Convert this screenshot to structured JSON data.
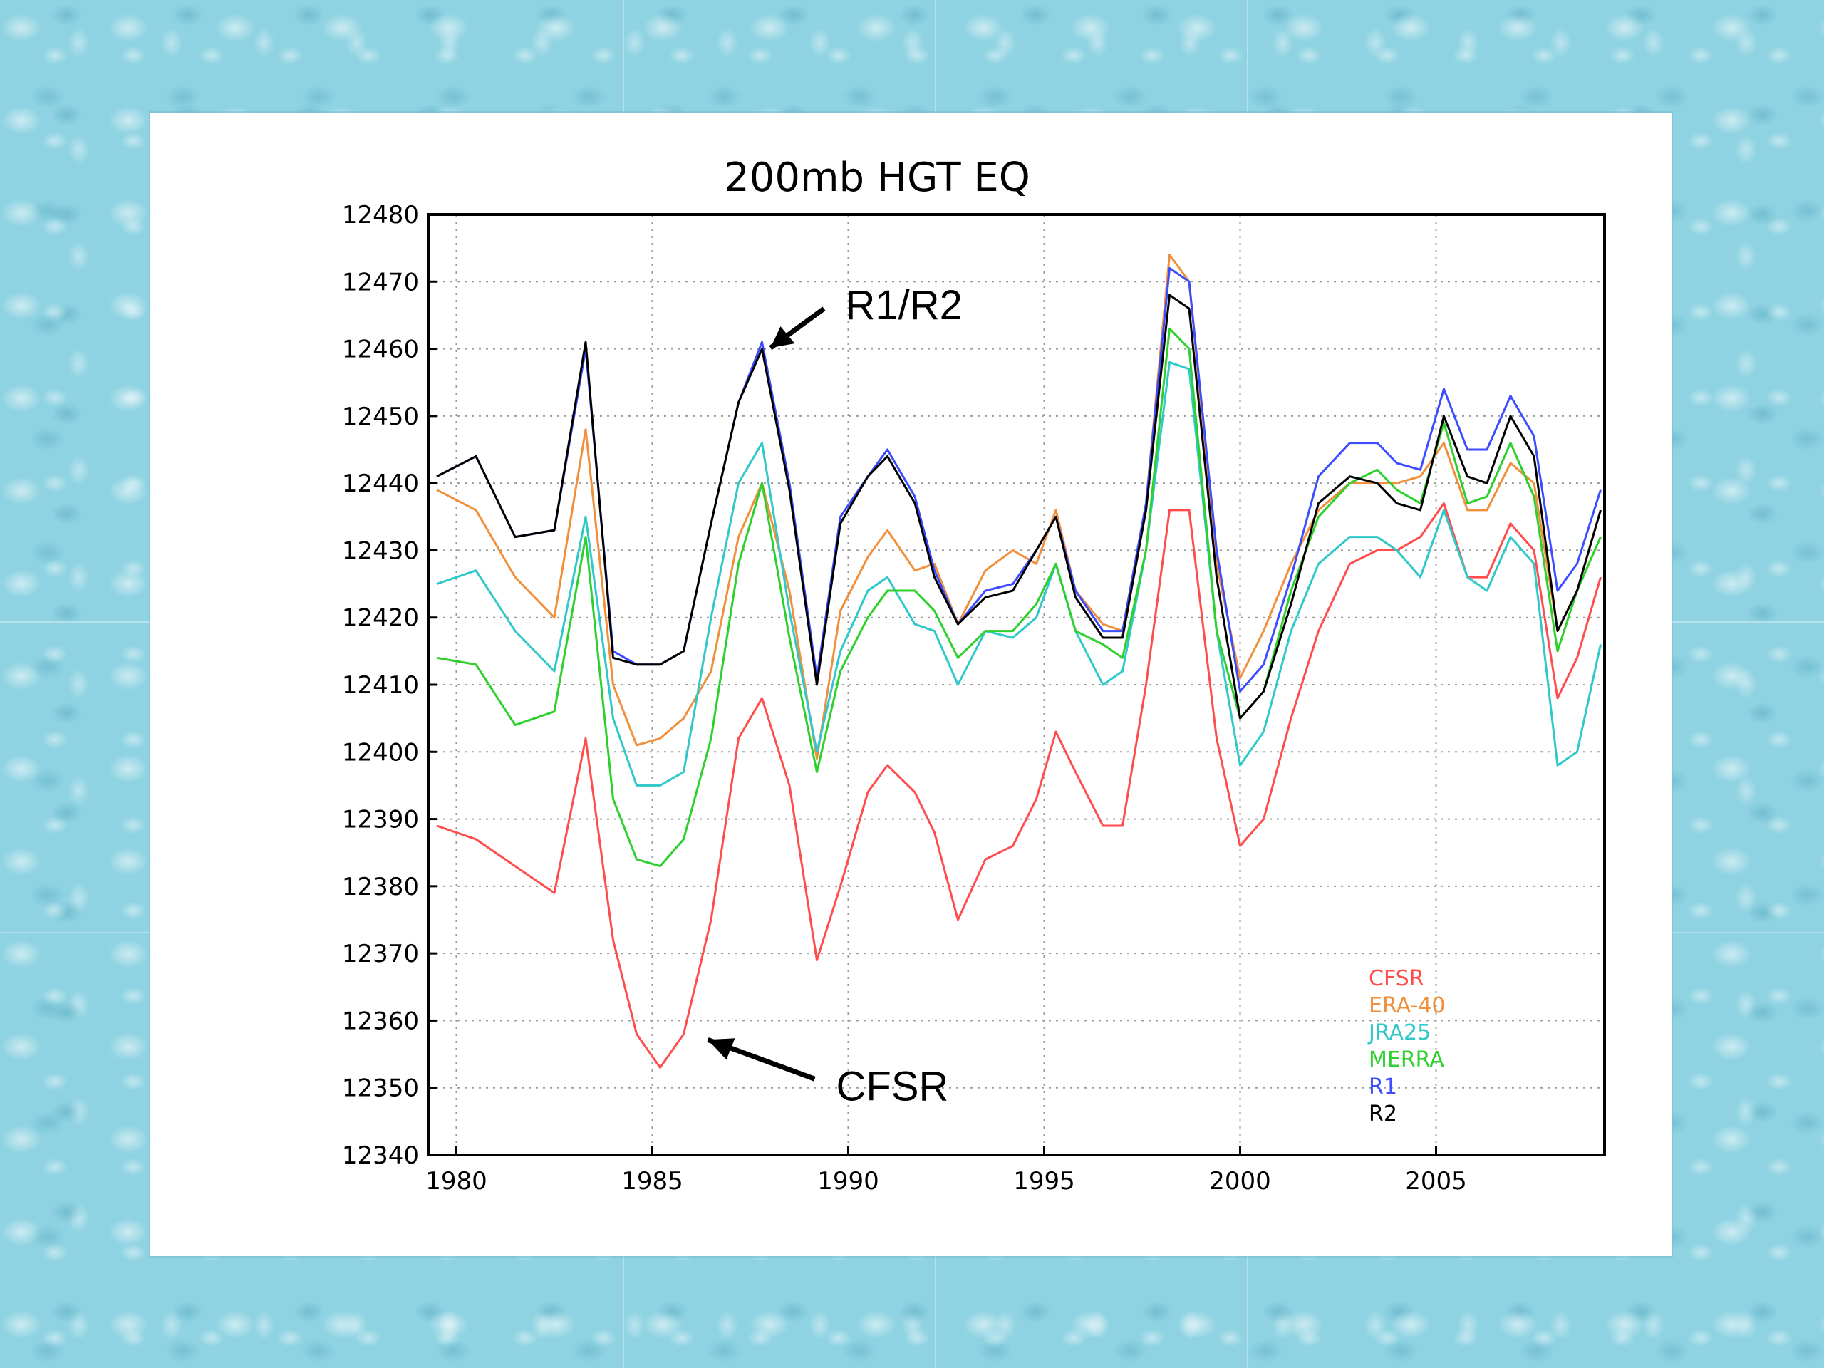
{
  "chart_data": {
    "type": "line",
    "title": "200mb HGT EQ",
    "xlabel": "",
    "ylabel": "",
    "xlim": [
      1979.3,
      2009.3
    ],
    "ylim": [
      12340,
      12480
    ],
    "xticks": [
      1980,
      1985,
      1990,
      1995,
      2000,
      2005
    ],
    "yticks": [
      12340,
      12350,
      12360,
      12370,
      12380,
      12390,
      12400,
      12410,
      12420,
      12430,
      12440,
      12450,
      12460,
      12470,
      12480
    ],
    "grid": true,
    "legend_position": "bottom-right",
    "annotations": [
      {
        "text": "R1/R2",
        "arrow_to": [
          1987.8,
          12461
        ]
      },
      {
        "text": "CFSR",
        "arrow_to": [
          1986.2,
          12358
        ]
      }
    ],
    "series": [
      {
        "name": "CFSR",
        "color": "#ff4d4d",
        "x": [
          1979.5,
          1980.5,
          1981.5,
          1982.5,
          1983.3,
          1984.0,
          1984.6,
          1985.2,
          1985.8,
          1986.5,
          1987.2,
          1987.8,
          1988.5,
          1989.2,
          1989.8,
          1990.5,
          1991.0,
          1991.7,
          1992.2,
          1992.8,
          1993.5,
          1994.2,
          1994.8,
          1995.3,
          1995.8,
          1996.5,
          1997.0,
          1997.6,
          1998.2,
          1998.7,
          1999.4,
          2000.0,
          2000.6,
          2001.3,
          2002.0,
          2002.8,
          2003.5,
          2004.0,
          2004.6,
          2005.2,
          2005.8,
          2006.3,
          2006.9,
          2007.5,
          2008.1,
          2008.6,
          2009.2
        ],
        "y": [
          12389,
          12387,
          12383,
          12379,
          12402,
          12372,
          12358,
          12353,
          12358,
          12375,
          12402,
          12408,
          12395,
          12369,
          12380,
          12394,
          12398,
          12394,
          12388,
          12375,
          12384,
          12386,
          12393,
          12403,
          12397,
          12389,
          12389,
          12410,
          12436,
          12436,
          12402,
          12386,
          12390,
          12405,
          12418,
          12428,
          12430,
          12430,
          12432,
          12437,
          12426,
          12426,
          12434,
          12430,
          12408,
          12414,
          12426
        ]
      },
      {
        "name": "ERA-40",
        "color": "#f0903c",
        "x": [
          1979.5,
          1980.5,
          1981.5,
          1982.5,
          1983.3,
          1984.0,
          1984.6,
          1985.2,
          1985.8,
          1986.5,
          1987.2,
          1987.8,
          1988.5,
          1989.2,
          1989.8,
          1990.5,
          1991.0,
          1991.7,
          1992.2,
          1992.8,
          1993.5,
          1994.2,
          1994.8,
          1995.3,
          1995.8,
          1996.5,
          1997.0,
          1997.6,
          1998.2,
          1998.7,
          1999.4,
          2000.0,
          2000.6,
          2001.3,
          2002.0,
          2002.8,
          2003.5,
          2004.0,
          2004.6,
          2005.2,
          2005.8,
          2006.3,
          2006.9,
          2007.5,
          2008.1,
          2008.6,
          2009.2
        ],
        "y": [
          12439,
          12436,
          12426,
          12420,
          12448,
          12410,
          12401,
          12402,
          12405,
          12412,
          12432,
          12440,
          12424,
          12399,
          12421,
          12429,
          12433,
          12427,
          12428,
          12419,
          12427,
          12430,
          12428,
          12436,
          12424,
          12419,
          12418,
          12437,
          12474,
          12470,
          12428,
          12411,
          12418,
          12428,
          12436,
          12440,
          12440,
          12440,
          12441,
          12446,
          12436,
          12436,
          12443,
          12440,
          12418,
          12424,
          12436
        ]
      },
      {
        "name": "JRA25",
        "color": "#30c8c8",
        "x": [
          1979.5,
          1980.5,
          1981.5,
          1982.5,
          1983.3,
          1984.0,
          1984.6,
          1985.2,
          1985.8,
          1986.5,
          1987.2,
          1987.8,
          1988.5,
          1989.2,
          1989.8,
          1990.5,
          1991.0,
          1991.7,
          1992.2,
          1992.8,
          1993.5,
          1994.2,
          1994.8,
          1995.3,
          1995.8,
          1996.5,
          1997.0,
          1997.6,
          1998.2,
          1998.7,
          1999.4,
          2000.0,
          2000.6,
          2001.3,
          2002.0,
          2002.8,
          2003.5,
          2004.0,
          2004.6,
          2005.2,
          2005.8,
          2006.3,
          2006.9,
          2007.5,
          2008.1,
          2008.6,
          2009.2
        ],
        "y": [
          12425,
          12427,
          12418,
          12412,
          12435,
          12405,
          12395,
          12395,
          12397,
          12420,
          12440,
          12446,
          12421,
          12400,
          12415,
          12424,
          12426,
          12419,
          12418,
          12410,
          12418,
          12417,
          12420,
          12428,
          12418,
          12410,
          12412,
          12430,
          12458,
          12457,
          12418,
          12398,
          12403,
          12418,
          12428,
          12432,
          12432,
          12430,
          12426,
          12436,
          12426,
          12424,
          12432,
          12428,
          12398,
          12400,
          12416
        ]
      },
      {
        "name": "MERRA",
        "color": "#2ed02e",
        "x": [
          1979.5,
          1980.5,
          1981.5,
          1982.5,
          1983.3,
          1984.0,
          1984.6,
          1985.2,
          1985.8,
          1986.5,
          1987.2,
          1987.8,
          1988.5,
          1989.2,
          1989.8,
          1990.5,
          1991.0,
          1991.7,
          1992.2,
          1992.8,
          1993.5,
          1994.2,
          1994.8,
          1995.3,
          1995.8,
          1996.5,
          1997.0,
          1997.6,
          1998.2,
          1998.7,
          1999.4,
          2000.0,
          2000.6,
          2001.3,
          2002.0,
          2002.8,
          2003.5,
          2004.0,
          2004.6,
          2005.2,
          2005.8,
          2006.3,
          2006.9,
          2007.5,
          2008.1,
          2008.6,
          2009.2
        ],
        "y": [
          12414,
          12413,
          12404,
          12406,
          12432,
          12393,
          12384,
          12383,
          12387,
          12402,
          12428,
          12440,
          12417,
          12397,
          12412,
          12420,
          12424,
          12424,
          12421,
          12414,
          12418,
          12418,
          12422,
          12428,
          12418,
          12416,
          12414,
          12430,
          12463,
          12460,
          12418,
          12405,
          12409,
          12424,
          12435,
          12440,
          12442,
          12439,
          12437,
          12449,
          12437,
          12438,
          12446,
          12438,
          12415,
          12424,
          12432
        ]
      },
      {
        "name": "R1",
        "color": "#3c4cff",
        "x": [
          1979.5,
          1980.5,
          1981.5,
          1982.5,
          1983.3,
          1984.0,
          1984.6,
          1985.2,
          1985.8,
          1986.5,
          1987.2,
          1987.8,
          1988.5,
          1989.2,
          1989.8,
          1990.5,
          1991.0,
          1991.7,
          1992.2,
          1992.8,
          1993.5,
          1994.2,
          1994.8,
          1995.3,
          1995.8,
          1996.5,
          1997.0,
          1997.6,
          1998.2,
          1998.7,
          1999.4,
          2000.0,
          2000.6,
          2001.3,
          2002.0,
          2002.8,
          2003.5,
          2004.0,
          2004.6,
          2005.2,
          2005.8,
          2006.3,
          2006.9,
          2007.5,
          2008.1,
          2008.6,
          2009.2
        ],
        "y": [
          12441,
          12444,
          12432,
          12433,
          12460,
          12415,
          12413,
          12413,
          12415,
          12434,
          12452,
          12461,
          12440,
          12411,
          12435,
          12441,
          12445,
          12438,
          12427,
          12419,
          12424,
          12425,
          12430,
          12435,
          12424,
          12418,
          12418,
          12437,
          12472,
          12470,
          12430,
          12409,
          12413,
          12426,
          12441,
          12446,
          12446,
          12443,
          12442,
          12454,
          12445,
          12445,
          12453,
          12447,
          12424,
          12428,
          12439
        ]
      },
      {
        "name": "R2",
        "color": "#000000",
        "x": [
          1979.5,
          1980.5,
          1981.5,
          1982.5,
          1983.3,
          1984.0,
          1984.6,
          1985.2,
          1985.8,
          1986.5,
          1987.2,
          1987.8,
          1988.5,
          1989.2,
          1989.8,
          1990.5,
          1991.0,
          1991.7,
          1992.2,
          1992.8,
          1993.5,
          1994.2,
          1994.8,
          1995.3,
          1995.8,
          1996.5,
          1997.0,
          1997.6,
          1998.2,
          1998.7,
          1999.4,
          2000.0,
          2000.6,
          2001.3,
          2002.0,
          2002.8,
          2003.5,
          2004.0,
          2004.6,
          2005.2,
          2005.8,
          2006.3,
          2006.9,
          2007.5,
          2008.1,
          2008.6,
          2009.2
        ],
        "y": [
          12441,
          12444,
          12432,
          12433,
          12461,
          12414,
          12413,
          12413,
          12415,
          12434,
          12452,
          12460,
          12439,
          12410,
          12434,
          12441,
          12444,
          12437,
          12426,
          12419,
          12423,
          12424,
          12430,
          12435,
          12423,
          12417,
          12417,
          12436,
          12468,
          12466,
          12426,
          12405,
          12409,
          12422,
          12437,
          12441,
          12440,
          12437,
          12436,
          12450,
          12441,
          12440,
          12450,
          12444,
          12418,
          12424,
          12436
        ]
      }
    ]
  }
}
